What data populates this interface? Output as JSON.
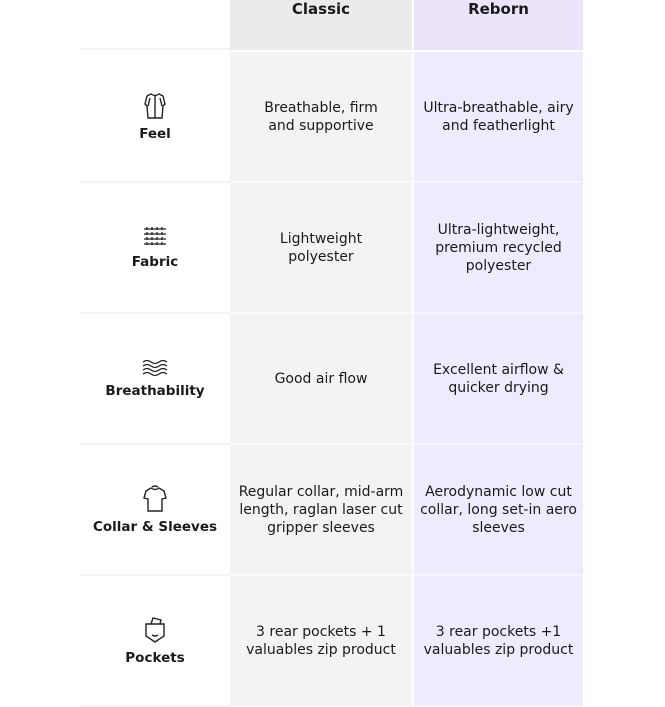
{
  "header": {
    "classic": "Classic",
    "reborn": "Reborn"
  },
  "colors": {
    "classic_header": "#ebebeb",
    "classic_body": "#f3f3f3",
    "reborn_header": "#ebe4fb",
    "reborn_body": "#f0ebfc"
  },
  "rows": [
    {
      "icon": "jersey-icon",
      "label": "Feel",
      "classic": "Breathable, firm and supportive",
      "reborn": "Ultra-breathable, airy and featherlight"
    },
    {
      "icon": "fabric-weave-icon",
      "label": "Fabric",
      "classic": "Lightweight polyester",
      "reborn": "Ultra-lightweight, premium recycled polyester"
    },
    {
      "icon": "airflow-waves-icon",
      "label": "Breathability",
      "classic": "Good air flow",
      "reborn": "Excellent airflow & quicker drying"
    },
    {
      "icon": "shirt-icon",
      "label": "Collar & Sleeves",
      "classic": "Regular collar, mid-arm length, raglan laser cut gripper sleeves",
      "reborn": "Aerodynamic low cut collar, long set-in aero sleeves"
    },
    {
      "icon": "pocket-icon",
      "label": "Pockets",
      "classic": "3 rear pockets + 1 valuables zip product",
      "reborn": "3 rear pockets +1 valuables zip product"
    }
  ]
}
